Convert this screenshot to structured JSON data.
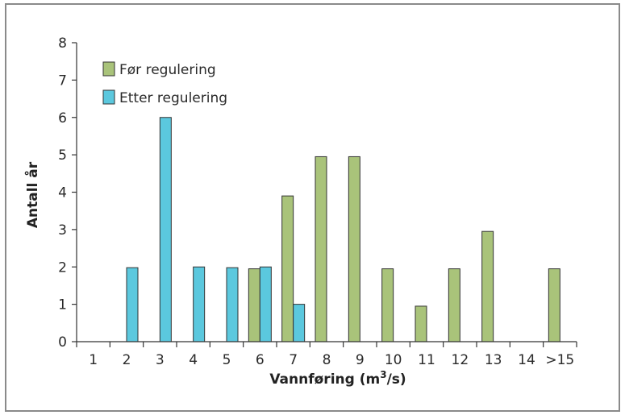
{
  "chart_data": {
    "type": "bar",
    "title": "",
    "xlabel_main": "Vannføring (m",
    "xlabel_sup": "3",
    "xlabel_tail": "/s)",
    "ylabel": "Antall år",
    "categories": [
      "1",
      "2",
      "3",
      "4",
      "5",
      "6",
      "7",
      "8",
      "9",
      "10",
      "11",
      "12",
      "13",
      "14",
      ">15"
    ],
    "ylim": [
      0,
      8
    ],
    "yticks": [
      "0",
      "1",
      "2",
      "3",
      "4",
      "5",
      "6",
      "7",
      "8"
    ],
    "grid": false,
    "legend_position": "top-left",
    "series": [
      {
        "name": "Før regulering",
        "color": "#a9c37a",
        "values": [
          0,
          0,
          0,
          0,
          0,
          1.95,
          3.9,
          4.95,
          4.95,
          1.95,
          0.95,
          1.95,
          2.95,
          0,
          1.95
        ]
      },
      {
        "name": "Etter regulering",
        "color": "#5bc8de",
        "values": [
          0,
          1.98,
          6.0,
          2.0,
          1.98,
          2.0,
          1.0,
          0,
          0,
          0,
          0,
          0,
          0,
          0,
          0
        ]
      }
    ]
  }
}
